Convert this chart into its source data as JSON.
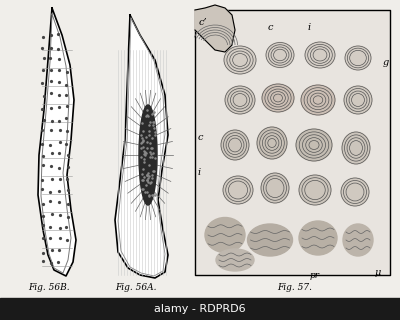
{
  "background_color": "#f0eeea",
  "fig_width": 4.0,
  "fig_height": 3.2,
  "dpi": 100,
  "watermark_text": "alamy - RDPRD6",
  "watermark_bg": "#1a1a1a",
  "watermark_color": "#ffffff",
  "caption_56B": "Fig. 56B.",
  "caption_56A": "Fig. 56A.",
  "caption_57": "Fig. 57.",
  "label_c_prime": "c’",
  "label_c": "c",
  "label_i_top": "i",
  "label_i_bot": "i",
  "label_g": "g",
  "label_pr": "pr",
  "label_mu": "μ",
  "label_c2": "c"
}
